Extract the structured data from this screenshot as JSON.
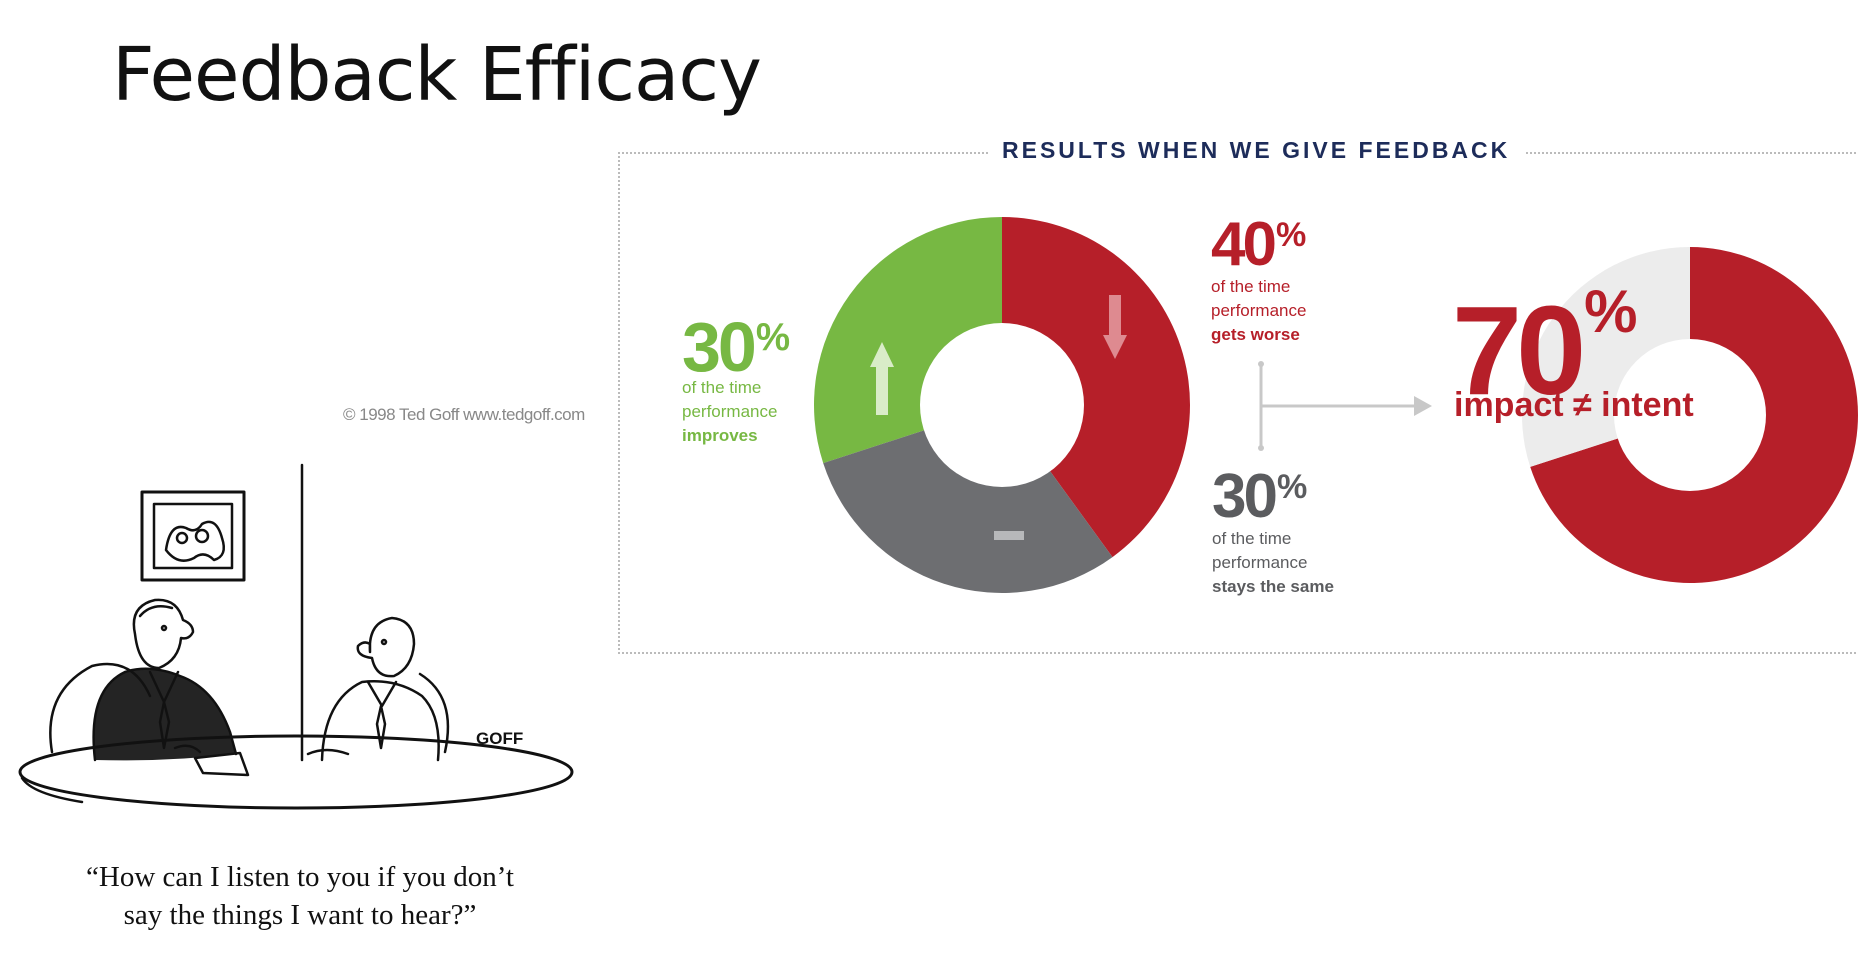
{
  "slide": {
    "title": "Feedback Efficacy"
  },
  "cartoon": {
    "credit": "© 1998 Ted Goff www.tedgoff.com",
    "signature": "GOFF",
    "caption_line1": "“How can I listen to you if you don’t",
    "caption_line2": "say the things I want to hear?”"
  },
  "infographic": {
    "heading": "RESULTS WHEN WE GIVE FEEDBACK",
    "improves": {
      "pct": "30",
      "symbol": "%",
      "line1": "of the time",
      "line2": "performance",
      "line3": "improves"
    },
    "worse": {
      "pct": "40",
      "symbol": "%",
      "line1": "of the time",
      "line2": "performance",
      "line3": "gets worse"
    },
    "same": {
      "pct": "30",
      "symbol": "%",
      "line1": "of the time",
      "line2": "performance",
      "line3": "stays the same"
    },
    "impact": {
      "pct": "70",
      "symbol": "%",
      "text": "impact ≠ intent"
    }
  },
  "colors": {
    "improves": "#77b843",
    "worse": "#b61f29",
    "same": "#6d6e71",
    "light": "#ececec"
  },
  "chart_data": [
    {
      "type": "pie",
      "categories": [
        "performance improves",
        "performance gets worse",
        "performance stays the same"
      ],
      "values": [
        30,
        40,
        30
      ],
      "title": "RESULTS WHEN WE GIVE FEEDBACK"
    },
    {
      "type": "pie",
      "categories": [
        "impact ≠ intent",
        "remainder"
      ],
      "values": [
        70,
        30
      ]
    }
  ]
}
